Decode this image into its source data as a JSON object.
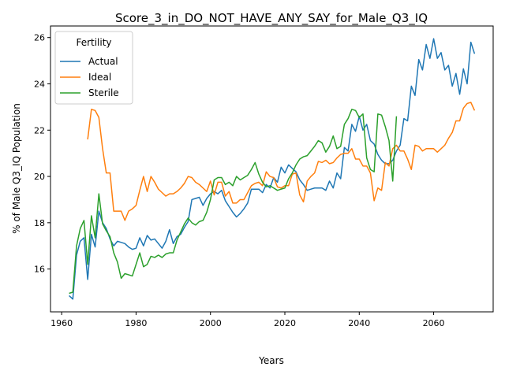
{
  "chart_data": {
    "type": "line",
    "title": "Score_3_in_DO_NOT_HAVE_ANY_SAY_for_Male_Q3_IQ",
    "xlabel": "Years",
    "ylabel": "% of Male Q3_IQ Population",
    "xlim": [
      1957,
      2076
    ],
    "ylim": [
      14.15,
      26.5
    ],
    "xticks": [
      1960,
      1980,
      2000,
      2020,
      2040,
      2060
    ],
    "yticks": [
      16,
      18,
      20,
      22,
      24,
      26
    ],
    "grid": false,
    "legend": {
      "title": "Fertility",
      "position": "top-left"
    },
    "series": [
      {
        "name": "Actual",
        "color": "#1f77b4",
        "points": [
          [
            1962,
            14.85
          ],
          [
            1963,
            14.7
          ],
          [
            1964,
            16.6
          ],
          [
            1965,
            17.2
          ],
          [
            1966,
            17.35
          ],
          [
            1967,
            15.55
          ],
          [
            1968,
            17.5
          ],
          [
            1969,
            16.95
          ],
          [
            1970,
            18.5
          ],
          [
            1971,
            18
          ],
          [
            1972,
            17.75
          ],
          [
            1973,
            17.3
          ],
          [
            1974,
            17
          ],
          [
            1975,
            17.2
          ],
          [
            1976,
            17.15
          ],
          [
            1977,
            17.1
          ],
          [
            1978,
            16.95
          ],
          [
            1979,
            16.85
          ],
          [
            1980,
            16.9
          ],
          [
            1981,
            17.35
          ],
          [
            1982,
            17
          ],
          [
            1983,
            17.45
          ],
          [
            1984,
            17.25
          ],
          [
            1985,
            17.3
          ],
          [
            1986,
            17.1
          ],
          [
            1987,
            16.9
          ],
          [
            1988,
            17.2
          ],
          [
            1989,
            17.7
          ],
          [
            1990,
            17.1
          ],
          [
            1991,
            17.4
          ],
          [
            1992,
            17.5
          ],
          [
            1993,
            17.8
          ],
          [
            1994,
            18.05
          ],
          [
            1995,
            19
          ],
          [
            1996,
            19.05
          ],
          [
            1997,
            19.1
          ],
          [
            1998,
            18.75
          ],
          [
            1999,
            19.05
          ],
          [
            2000,
            19.25
          ],
          [
            2001,
            19.35
          ],
          [
            2002,
            19.25
          ],
          [
            2003,
            19.4
          ],
          [
            2004,
            18.95
          ],
          [
            2005,
            18.7
          ],
          [
            2006,
            18.45
          ],
          [
            2007,
            18.25
          ],
          [
            2008,
            18.4
          ],
          [
            2009,
            18.6
          ],
          [
            2010,
            18.85
          ],
          [
            2011,
            19.45
          ],
          [
            2012,
            19.45
          ],
          [
            2013,
            19.45
          ],
          [
            2014,
            19.3
          ],
          [
            2015,
            19.65
          ],
          [
            2016,
            19.5
          ],
          [
            2017,
            19.95
          ],
          [
            2018,
            19.75
          ],
          [
            2019,
            20.4
          ],
          [
            2020,
            20.15
          ],
          [
            2021,
            20.5
          ],
          [
            2022,
            20.35
          ],
          [
            2023,
            20.2
          ],
          [
            2024,
            19.85
          ],
          [
            2025,
            19.65
          ],
          [
            2026,
            19.4
          ],
          [
            2027,
            19.45
          ],
          [
            2028,
            19.5
          ],
          [
            2029,
            19.5
          ],
          [
            2030,
            19.5
          ],
          [
            2031,
            19.4
          ],
          [
            2032,
            19.8
          ],
          [
            2033,
            19.5
          ],
          [
            2034,
            20.15
          ],
          [
            2035,
            19.9
          ],
          [
            2036,
            21.25
          ],
          [
            2037,
            21.1
          ],
          [
            2038,
            22.25
          ],
          [
            2039,
            21.95
          ],
          [
            2040,
            22.6
          ],
          [
            2041,
            22
          ],
          [
            2042,
            22.25
          ],
          [
            2043,
            21.55
          ],
          [
            2044,
            21.4
          ],
          [
            2045,
            20.95
          ],
          [
            2046,
            20.7
          ],
          [
            2047,
            20.55
          ],
          [
            2048,
            20.55
          ],
          [
            2049,
            20.7
          ],
          [
            2050,
            21.1
          ],
          [
            2051,
            21.35
          ],
          [
            2052,
            22.5
          ],
          [
            2053,
            22.4
          ],
          [
            2054,
            23.9
          ],
          [
            2055,
            23.5
          ],
          [
            2056,
            25.05
          ],
          [
            2057,
            24.6
          ],
          [
            2058,
            25.7
          ],
          [
            2059,
            25.1
          ],
          [
            2060,
            25.95
          ],
          [
            2061,
            25.1
          ],
          [
            2062,
            25.35
          ],
          [
            2063,
            24.6
          ],
          [
            2064,
            24.8
          ],
          [
            2065,
            23.9
          ],
          [
            2066,
            24.45
          ],
          [
            2067,
            23.55
          ],
          [
            2068,
            24.65
          ],
          [
            2069,
            24
          ],
          [
            2070,
            25.8
          ],
          [
            2071,
            25.3
          ]
        ]
      },
      {
        "name": "Ideal",
        "color": "#ff7f0e",
        "points": [
          [
            1967,
            21.6
          ],
          [
            1968,
            22.9
          ],
          [
            1969,
            22.85
          ],
          [
            1970,
            22.55
          ],
          [
            1971,
            21.2
          ],
          [
            1972,
            20.15
          ],
          [
            1973,
            20.15
          ],
          [
            1974,
            18.5
          ],
          [
            1975,
            18.5
          ],
          [
            1976,
            18.5
          ],
          [
            1977,
            18.1
          ],
          [
            1978,
            18.5
          ],
          [
            1979,
            18.6
          ],
          [
            1980,
            18.75
          ],
          [
            1981,
            19.4
          ],
          [
            1982,
            20
          ],
          [
            1983,
            19.35
          ],
          [
            1984,
            20
          ],
          [
            1985,
            19.75
          ],
          [
            1986,
            19.45
          ],
          [
            1987,
            19.3
          ],
          [
            1988,
            19.15
          ],
          [
            1989,
            19.25
          ],
          [
            1990,
            19.25
          ],
          [
            1991,
            19.35
          ],
          [
            1992,
            19.5
          ],
          [
            1993,
            19.7
          ],
          [
            1994,
            20
          ],
          [
            1995,
            19.95
          ],
          [
            1996,
            19.75
          ],
          [
            1997,
            19.65
          ],
          [
            1998,
            19.5
          ],
          [
            1999,
            19.35
          ],
          [
            2000,
            19.8
          ],
          [
            2001,
            19.2
          ],
          [
            2002,
            19.75
          ],
          [
            2003,
            19.75
          ],
          [
            2004,
            19.15
          ],
          [
            2005,
            19.35
          ],
          [
            2006,
            18.85
          ],
          [
            2007,
            18.85
          ],
          [
            2008,
            19
          ],
          [
            2009,
            19
          ],
          [
            2010,
            19.3
          ],
          [
            2011,
            19.6
          ],
          [
            2012,
            19.7
          ],
          [
            2013,
            19.75
          ],
          [
            2014,
            19.6
          ],
          [
            2015,
            20.2
          ],
          [
            2016,
            20
          ],
          [
            2017,
            19.95
          ],
          [
            2018,
            19.55
          ],
          [
            2019,
            19.5
          ],
          [
            2020,
            19.6
          ],
          [
            2021,
            19.6
          ],
          [
            2022,
            20.1
          ],
          [
            2023,
            20.15
          ],
          [
            2024,
            19.2
          ],
          [
            2025,
            18.9
          ],
          [
            2026,
            19.8
          ],
          [
            2027,
            20
          ],
          [
            2028,
            20.15
          ],
          [
            2029,
            20.65
          ],
          [
            2030,
            20.6
          ],
          [
            2031,
            20.7
          ],
          [
            2032,
            20.55
          ],
          [
            2033,
            20.6
          ],
          [
            2034,
            20.8
          ],
          [
            2035,
            20.95
          ],
          [
            2036,
            21
          ],
          [
            2037,
            21
          ],
          [
            2038,
            21.2
          ],
          [
            2039,
            20.75
          ],
          [
            2040,
            20.75
          ],
          [
            2041,
            20.45
          ],
          [
            2042,
            20.45
          ],
          [
            2043,
            20.15
          ],
          [
            2044,
            18.95
          ],
          [
            2045,
            19.5
          ],
          [
            2046,
            19.4
          ],
          [
            2047,
            20.6
          ],
          [
            2048,
            20.45
          ],
          [
            2049,
            21.2
          ],
          [
            2050,
            21.35
          ],
          [
            2051,
            21.1
          ],
          [
            2052,
            21.1
          ],
          [
            2053,
            20.75
          ],
          [
            2054,
            20.3
          ],
          [
            2055,
            21.35
          ],
          [
            2056,
            21.3
          ],
          [
            2057,
            21.1
          ],
          [
            2058,
            21.2
          ],
          [
            2059,
            21.2
          ],
          [
            2060,
            21.2
          ],
          [
            2061,
            21.05
          ],
          [
            2062,
            21.2
          ],
          [
            2063,
            21.35
          ],
          [
            2064,
            21.65
          ],
          [
            2065,
            21.9
          ],
          [
            2066,
            22.4
          ],
          [
            2067,
            22.4
          ],
          [
            2068,
            22.95
          ],
          [
            2069,
            23.15
          ],
          [
            2070,
            23.2
          ],
          [
            2071,
            22.85
          ]
        ]
      },
      {
        "name": "Sterile",
        "color": "#2ca02c",
        "points": [
          [
            1962,
            14.95
          ],
          [
            1963,
            15
          ],
          [
            1964,
            17
          ],
          [
            1965,
            17.75
          ],
          [
            1966,
            18.1
          ],
          [
            1967,
            16.2
          ],
          [
            1968,
            18.3
          ],
          [
            1969,
            17.35
          ],
          [
            1970,
            19.25
          ],
          [
            1971,
            17.95
          ],
          [
            1972,
            17.65
          ],
          [
            1973,
            17.4
          ],
          [
            1974,
            16.7
          ],
          [
            1975,
            16.3
          ],
          [
            1976,
            15.6
          ],
          [
            1977,
            15.8
          ],
          [
            1978,
            15.75
          ],
          [
            1979,
            15.7
          ],
          [
            1980,
            16.2
          ],
          [
            1981,
            16.7
          ],
          [
            1982,
            16.1
          ],
          [
            1983,
            16.2
          ],
          [
            1984,
            16.55
          ],
          [
            1985,
            16.5
          ],
          [
            1986,
            16.6
          ],
          [
            1987,
            16.5
          ],
          [
            1988,
            16.65
          ],
          [
            1989,
            16.7
          ],
          [
            1990,
            16.7
          ],
          [
            1991,
            17.25
          ],
          [
            1992,
            17.6
          ],
          [
            1993,
            17.95
          ],
          [
            1994,
            18.2
          ],
          [
            1995,
            18
          ],
          [
            1996,
            17.9
          ],
          [
            1997,
            18.05
          ],
          [
            1998,
            18.1
          ],
          [
            1999,
            18.45
          ],
          [
            2000,
            19
          ],
          [
            2001,
            19.85
          ],
          [
            2002,
            19.95
          ],
          [
            2003,
            19.95
          ],
          [
            2004,
            19.65
          ],
          [
            2005,
            19.75
          ],
          [
            2006,
            19.6
          ],
          [
            2007,
            20
          ],
          [
            2008,
            19.85
          ],
          [
            2009,
            19.95
          ],
          [
            2010,
            20.05
          ],
          [
            2011,
            20.3
          ],
          [
            2012,
            20.6
          ],
          [
            2013,
            20.1
          ],
          [
            2014,
            19.75
          ],
          [
            2015,
            19.55
          ],
          [
            2016,
            19.6
          ],
          [
            2017,
            19.5
          ],
          [
            2018,
            19.4
          ],
          [
            2019,
            19.45
          ],
          [
            2020,
            19.5
          ],
          [
            2021,
            19.9
          ],
          [
            2022,
            20.15
          ],
          [
            2023,
            20.5
          ],
          [
            2024,
            20.75
          ],
          [
            2025,
            20.85
          ],
          [
            2026,
            20.9
          ],
          [
            2027,
            21.1
          ],
          [
            2028,
            21.3
          ],
          [
            2029,
            21.55
          ],
          [
            2030,
            21.45
          ],
          [
            2031,
            21.05
          ],
          [
            2032,
            21.3
          ],
          [
            2033,
            21.75
          ],
          [
            2034,
            21.2
          ],
          [
            2035,
            21.3
          ],
          [
            2036,
            22.25
          ],
          [
            2037,
            22.5
          ],
          [
            2038,
            22.9
          ],
          [
            2039,
            22.85
          ],
          [
            2040,
            22.55
          ],
          [
            2041,
            22.7
          ],
          [
            2042,
            20.8
          ],
          [
            2043,
            20.3
          ],
          [
            2044,
            20.2
          ],
          [
            2045,
            22.7
          ],
          [
            2046,
            22.65
          ],
          [
            2047,
            22.15
          ],
          [
            2048,
            21.55
          ],
          [
            2049,
            19.8
          ],
          [
            2050,
            22.6
          ]
        ]
      }
    ]
  }
}
